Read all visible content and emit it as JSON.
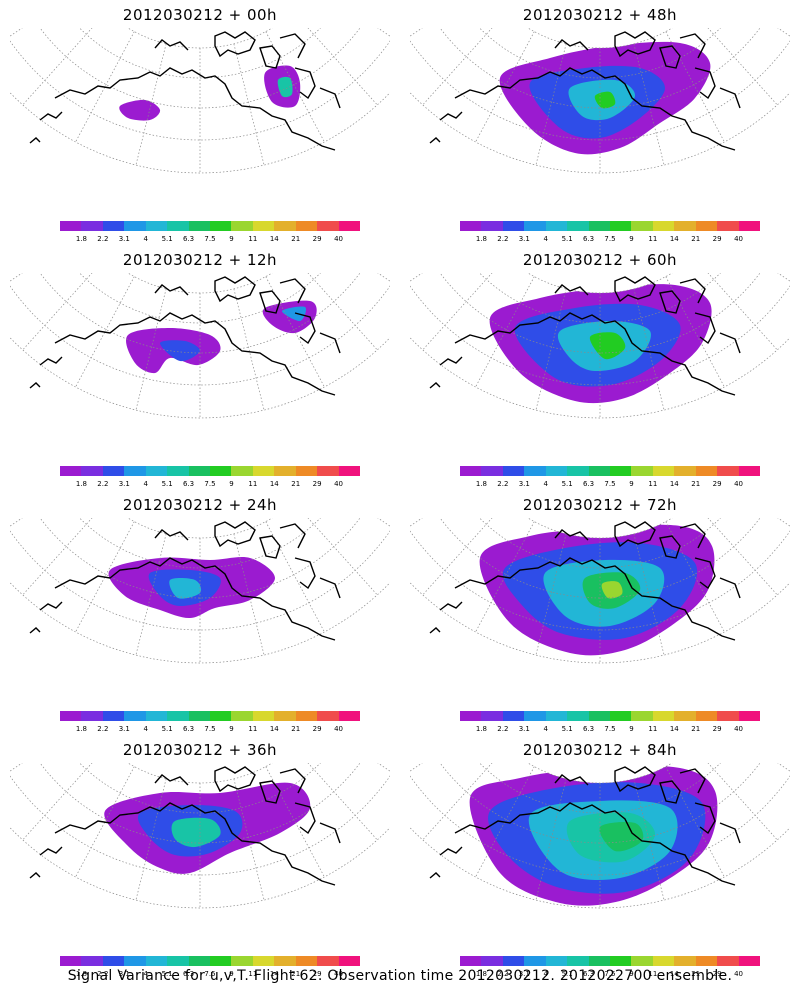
{
  "caption": "Signal Variance for u,v,T. Flight 62. Observation time 2012030212. 2012022700 ensemble.",
  "colorbar": {
    "colors": [
      "#9b1bd0",
      "#7a2ee0",
      "#2f4de8",
      "#1f97e6",
      "#22b6d6",
      "#18c4a6",
      "#19c060",
      "#22cc22",
      "#9ad630",
      "#d8d82e",
      "#e3b02c",
      "#ee8a26",
      "#f04c4c",
      "#f0127d"
    ],
    "labels": [
      "1.8",
      "2.2",
      "3.1",
      "4",
      "5.1",
      "6.3",
      "7.5",
      "9",
      "11",
      "14",
      "21",
      "29",
      "40"
    ]
  },
  "panels": [
    {
      "title": "2012030212 + 00h",
      "intensity": 0
    },
    {
      "title": "2012030212 + 48h",
      "intensity": 4
    },
    {
      "title": "2012030212 + 12h",
      "intensity": 1
    },
    {
      "title": "2012030212 + 60h",
      "intensity": 5
    },
    {
      "title": "2012030212 + 24h",
      "intensity": 2
    },
    {
      "title": "2012030212 + 72h",
      "intensity": 6
    },
    {
      "title": "2012030212 + 36h",
      "intensity": 3
    },
    {
      "title": "2012030212 + 84h",
      "intensity": 7
    }
  ]
}
